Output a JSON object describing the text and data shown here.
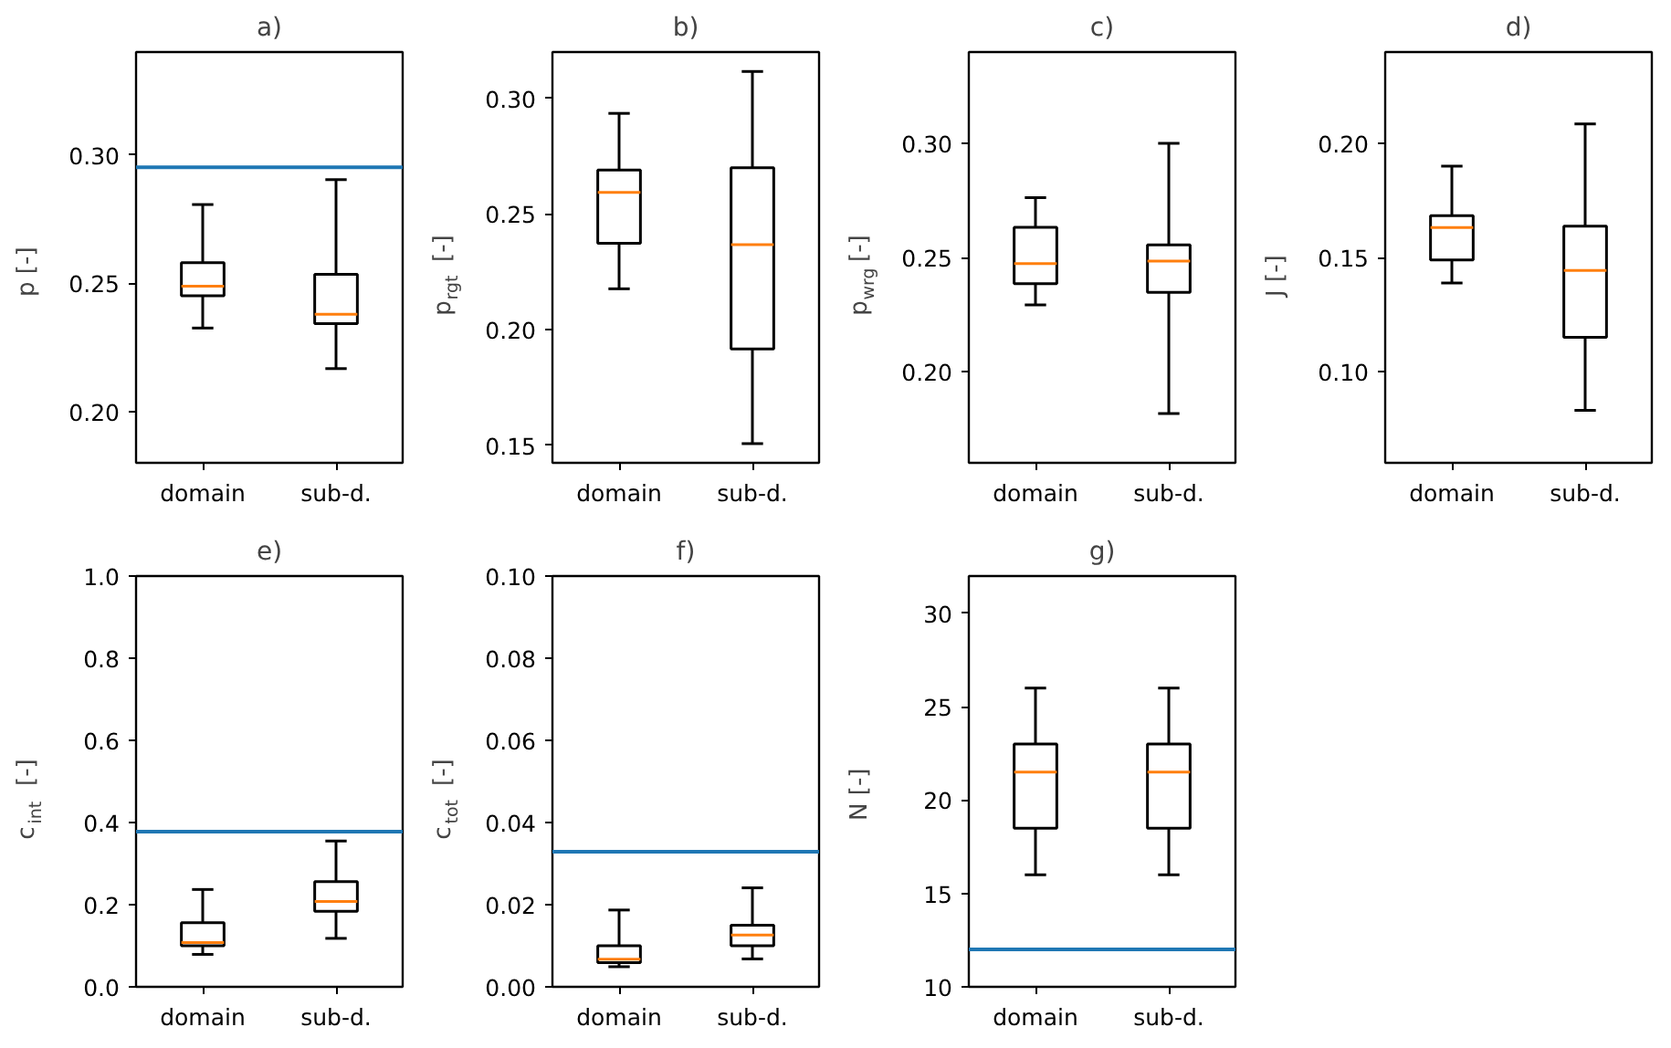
{
  "chart_data": [
    {
      "type": "box",
      "title": "a)",
      "ylabel": "p [-]",
      "categories": [
        "domain",
        "sub-d."
      ],
      "ylim": [
        0.18,
        0.34
      ],
      "yticks": [
        {
          "value": 0.2,
          "label": "0.20"
        },
        0.25,
        {
          "value": 0.3,
          "label": "0.30"
        }
      ],
      "boxes": [
        {
          "low": 0.2325,
          "q1": 0.2451,
          "median": 0.2488,
          "q3": 0.258,
          "high": 0.2806
        },
        {
          "low": 0.2167,
          "q1": 0.2342,
          "median": 0.2379,
          "q3": 0.2534,
          "high": 0.2903
        }
      ],
      "ref_lines": [
        {
          "axis": "y",
          "value": 0.2951,
          "color": "#1f77b4"
        }
      ]
    },
    {
      "type": "box",
      "title": "b)",
      "ylabel": "p$_{rgt}$ [-]",
      "categories": [
        "domain",
        "sub-d."
      ],
      "ylim": [
        0.1425,
        0.32
      ],
      "yticks": [
        0.15,
        {
          "value": 0.2,
          "label": "0.20"
        },
        0.25,
        {
          "value": 0.3,
          "label": "0.30"
        }
      ],
      "boxes": [
        {
          "low": 0.2177,
          "q1": 0.2374,
          "median": 0.2594,
          "q3": 0.269,
          "high": 0.2935
        },
        {
          "low": 0.1508,
          "q1": 0.1917,
          "median": 0.2368,
          "q3": 0.27,
          "high": 0.3116
        }
      ]
    },
    {
      "type": "box",
      "title": "c)",
      "ylabel": "p$_{wrg}$ [-]",
      "categories": [
        "domain",
        "sub-d."
      ],
      "ylim": [
        0.16,
        0.34
      ],
      "yticks": [
        {
          "value": 0.2,
          "label": "0.20"
        },
        0.25,
        {
          "value": 0.3,
          "label": "0.30"
        }
      ],
      "boxes": [
        {
          "low": 0.2292,
          "q1": 0.2385,
          "median": 0.2473,
          "q3": 0.2632,
          "high": 0.2762
        },
        {
          "low": 0.1816,
          "q1": 0.2347,
          "median": 0.2484,
          "q3": 0.2555,
          "high": 0.3
        }
      ]
    },
    {
      "type": "box",
      "title": "d)",
      "ylabel": "J [-]",
      "categories": [
        "domain",
        "sub-d."
      ],
      "ylim": [
        0.06,
        0.24
      ],
      "yticks": [
        {
          "value": 0.1,
          "label": "0.10"
        },
        0.15,
        {
          "value": 0.2,
          "label": "0.20"
        }
      ],
      "boxes": [
        {
          "low": 0.1388,
          "q1": 0.1489,
          "median": 0.1631,
          "q3": 0.1683,
          "high": 0.19
        },
        {
          "low": 0.083,
          "q1": 0.115,
          "median": 0.1443,
          "q3": 0.1637,
          "high": 0.2085
        }
      ]
    },
    {
      "type": "box",
      "title": "e)",
      "ylabel": "c$_{int}$ [-]",
      "categories": [
        "domain",
        "sub-d."
      ],
      "ylim": [
        0,
        1
      ],
      "yticks": [
        {
          "value": 0,
          "label": "0.0"
        },
        0.2,
        0.4,
        0.6,
        0.8,
        {
          "value": 1,
          "label": "1.0"
        }
      ],
      "boxes": [
        {
          "low": 0.079,
          "q1": 0.1,
          "median": 0.108,
          "q3": 0.156,
          "high": 0.237
        },
        {
          "low": 0.118,
          "q1": 0.184,
          "median": 0.208,
          "q3": 0.256,
          "high": 0.355
        }
      ],
      "ref_lines": [
        {
          "axis": "y",
          "value": 0.378,
          "color": "#1f77b4"
        }
      ]
    },
    {
      "type": "box",
      "title": "f)",
      "ylabel": "c$_{tot}$ [-]",
      "categories": [
        "domain",
        "sub-d."
      ],
      "ylim": [
        0,
        0.1
      ],
      "yticks": [
        {
          "value": 0,
          "label": "0.00"
        },
        0.02,
        0.04,
        0.06,
        0.08,
        {
          "value": 0.1,
          "label": "0.10"
        }
      ],
      "boxes": [
        {
          "low": 0.0049,
          "q1": 0.0059,
          "median": 0.0067,
          "q3": 0.01,
          "high": 0.0187
        },
        {
          "low": 0.0068,
          "q1": 0.01,
          "median": 0.0126,
          "q3": 0.015,
          "high": 0.0241
        }
      ],
      "ref_lines": [
        {
          "axis": "y",
          "value": 0.0329,
          "color": "#1f77b4"
        }
      ]
    },
    {
      "type": "box",
      "title": "g)",
      "ylabel": "N [-]",
      "categories": [
        "domain",
        "sub-d."
      ],
      "ylim": [
        10,
        32
      ],
      "yticks": [
        10,
        15,
        20,
        25,
        30
      ],
      "boxes": [
        {
          "low": 16,
          "q1": 18.5,
          "median": 21.5,
          "q3": 23,
          "high": 26
        },
        {
          "low": 16,
          "q1": 18.5,
          "median": 21.5,
          "q3": 23,
          "high": 26
        }
      ],
      "ref_lines": [
        {
          "axis": "y",
          "value": 12,
          "color": "#1f77b4"
        }
      ]
    }
  ]
}
